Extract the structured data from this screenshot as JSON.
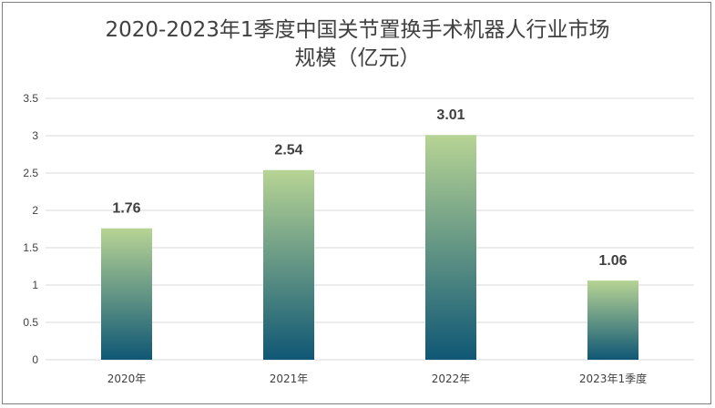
{
  "chart_data": {
    "type": "bar",
    "title_line1": "2020-2023年1季度中国关节置换手术机器人行业市场",
    "title_line2": "规模（亿元）",
    "categories": [
      "2020年",
      "2021年",
      "2022年",
      "2023年1季度"
    ],
    "values": [
      1.76,
      2.54,
      3.01,
      1.06
    ],
    "value_labels": [
      "1.76",
      "2.54",
      "3.01",
      "1.06"
    ],
    "ylim": [
      0,
      3.5
    ],
    "yticks": [
      "0",
      "0.5",
      "1",
      "1.5",
      "2",
      "2.5",
      "3",
      "3.5"
    ],
    "grid": true,
    "legend": "none",
    "colors": {
      "bar_top": "#b7d494",
      "bar_bottom": "#0f5775",
      "grid": "#d9d9d9",
      "text": "#404040"
    }
  }
}
